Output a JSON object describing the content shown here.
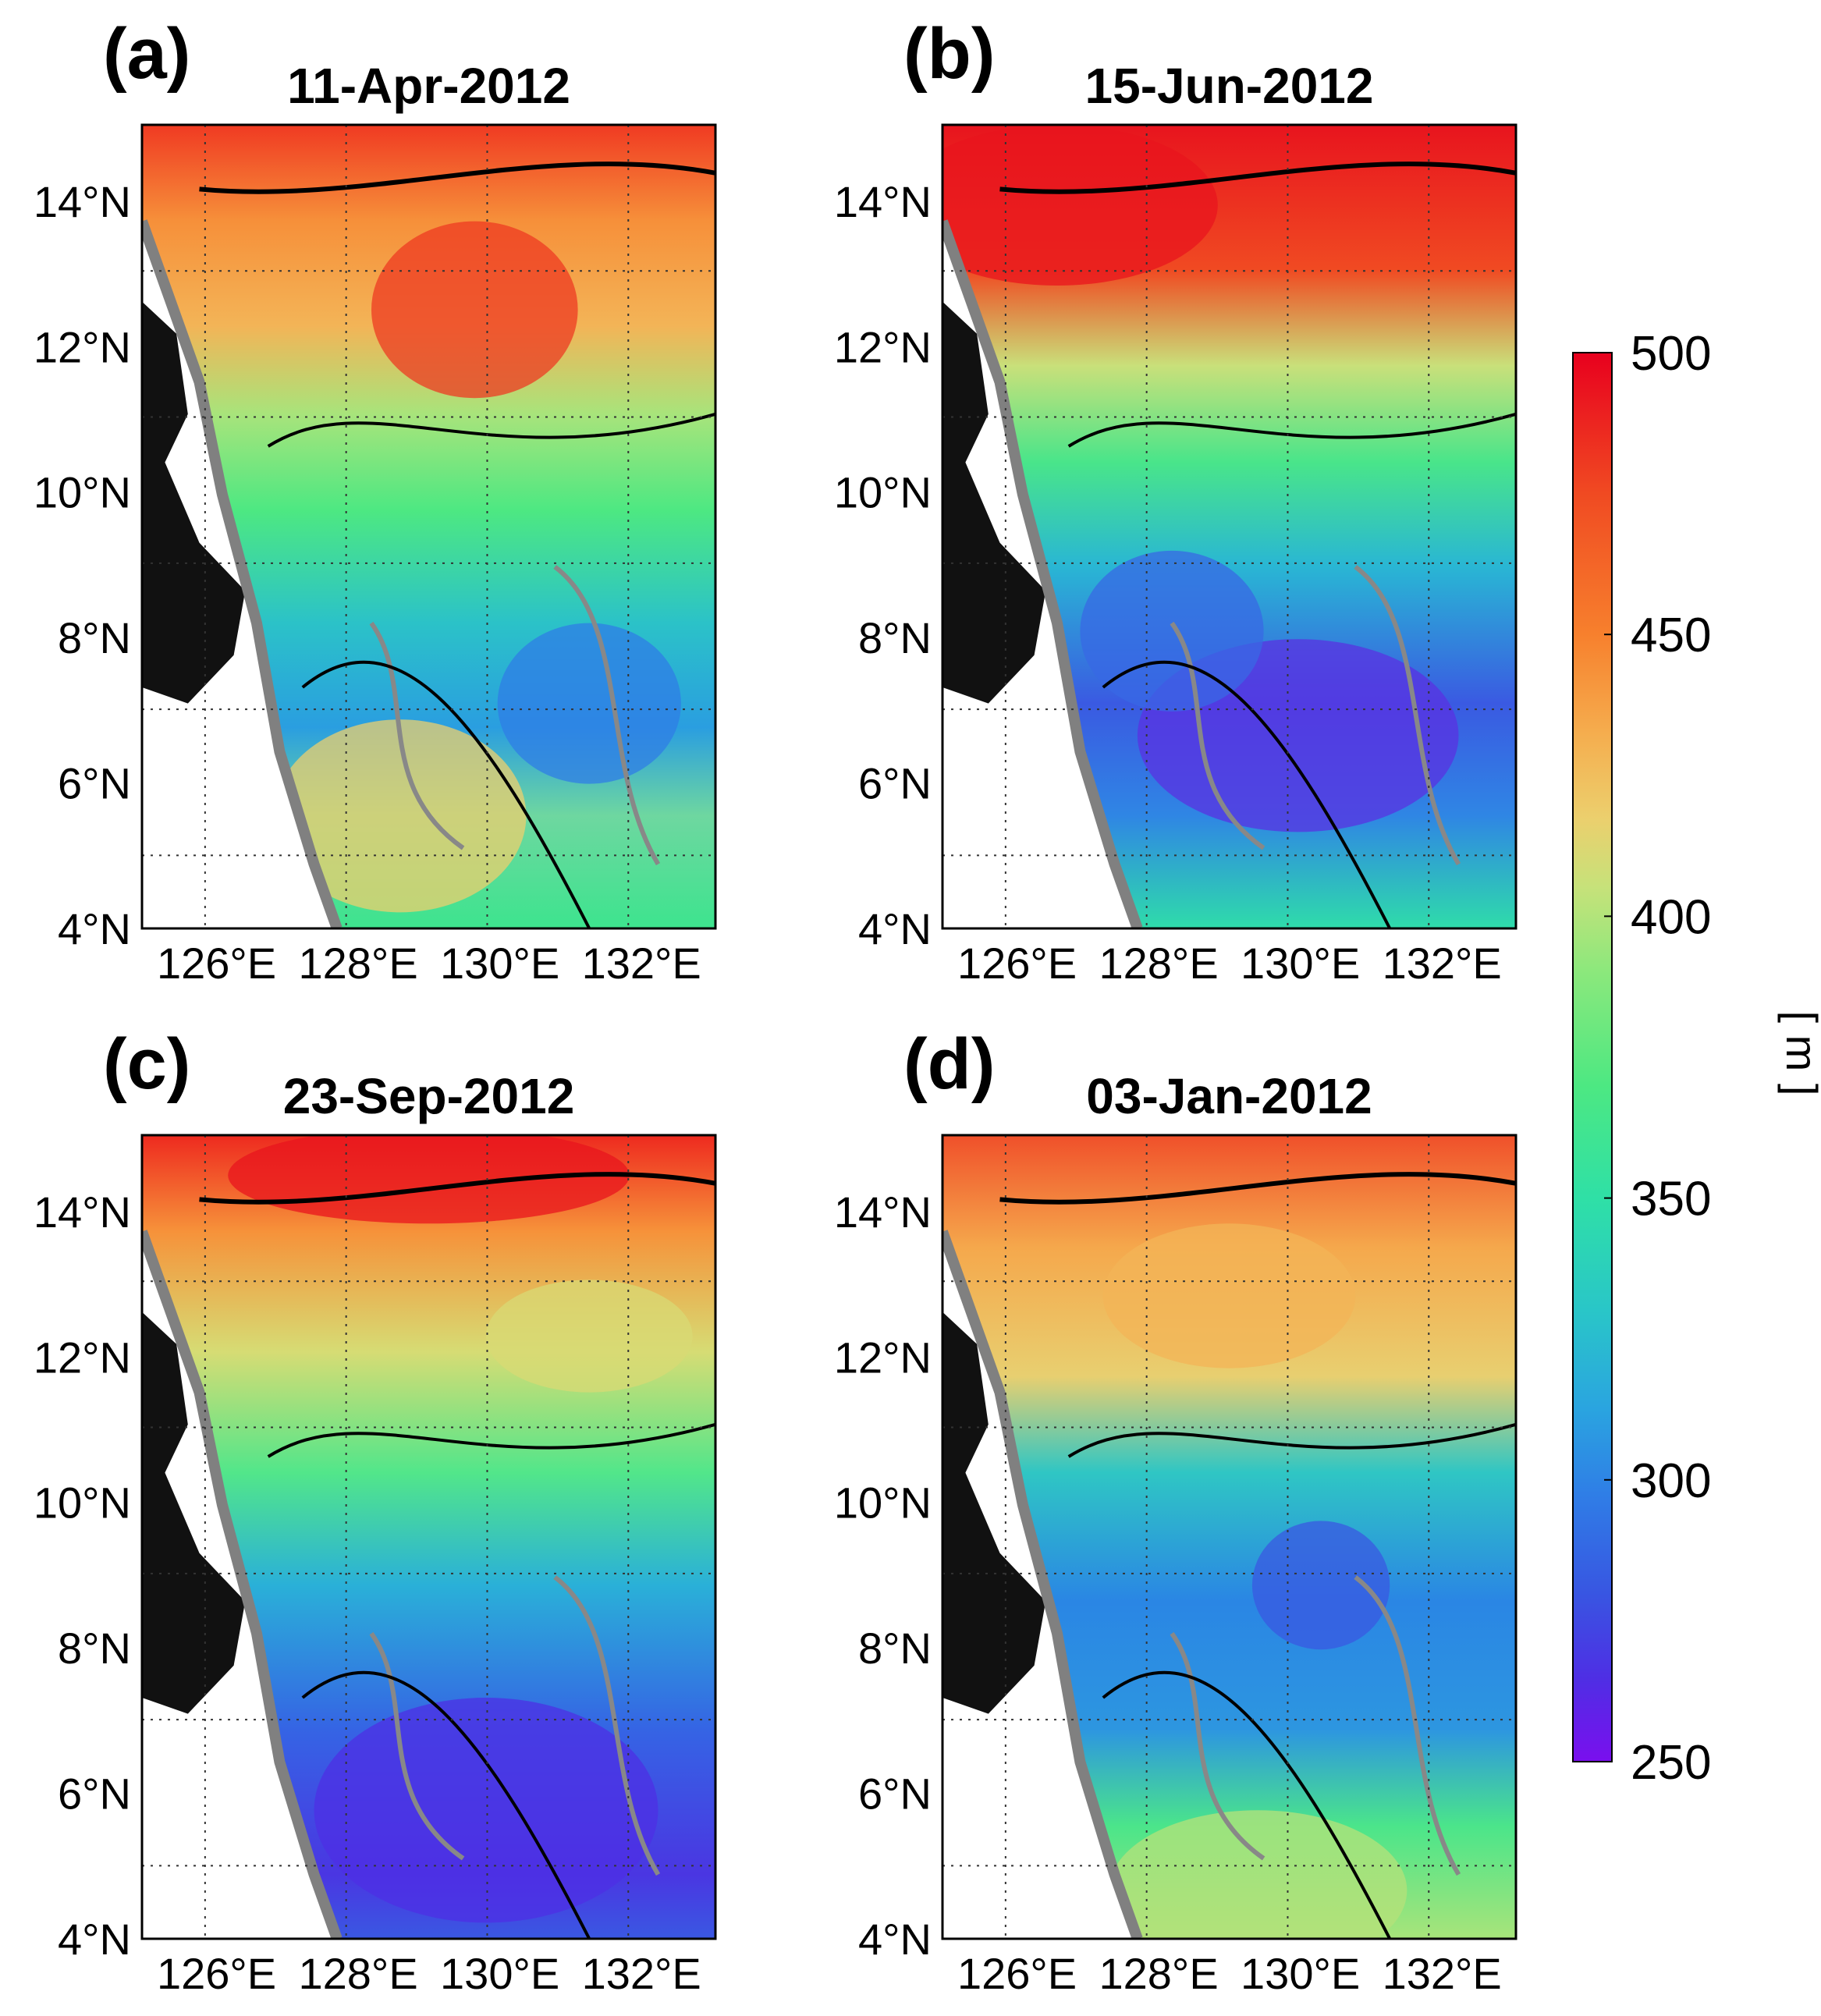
{
  "figure": {
    "colorbar": {
      "ticks": [
        "500",
        "450",
        "400",
        "350",
        "300",
        "250"
      ],
      "unit_label": "[ m ]",
      "colors": [
        "#e8001e",
        "#f04a22",
        "#f7802d",
        "#f5ad4e",
        "#eccf6d",
        "#c6e27a",
        "#8be87c",
        "#4de882",
        "#2fe0a6",
        "#29c6c8",
        "#2aa4e0",
        "#2f7ee6",
        "#3856e2",
        "#4e2fe4",
        "#7a0fee"
      ]
    },
    "panels": [
      {
        "id": "a",
        "label": "(a)",
        "date": "11-Apr-2012"
      },
      {
        "id": "b",
        "label": "(b)",
        "date": "15-Jun-2012"
      },
      {
        "id": "c",
        "label": "(c)",
        "date": "23-Sep-2012"
      },
      {
        "id": "d",
        "label": "(d)",
        "date": "03-Jan-2012"
      }
    ],
    "lat_ticks": [
      "14°N",
      "12°N",
      "10°N",
      "8°N",
      "6°N",
      "4°N"
    ],
    "lon_ticks": [
      "126°E",
      "128°E",
      "130°E",
      "132°E"
    ]
  }
}
